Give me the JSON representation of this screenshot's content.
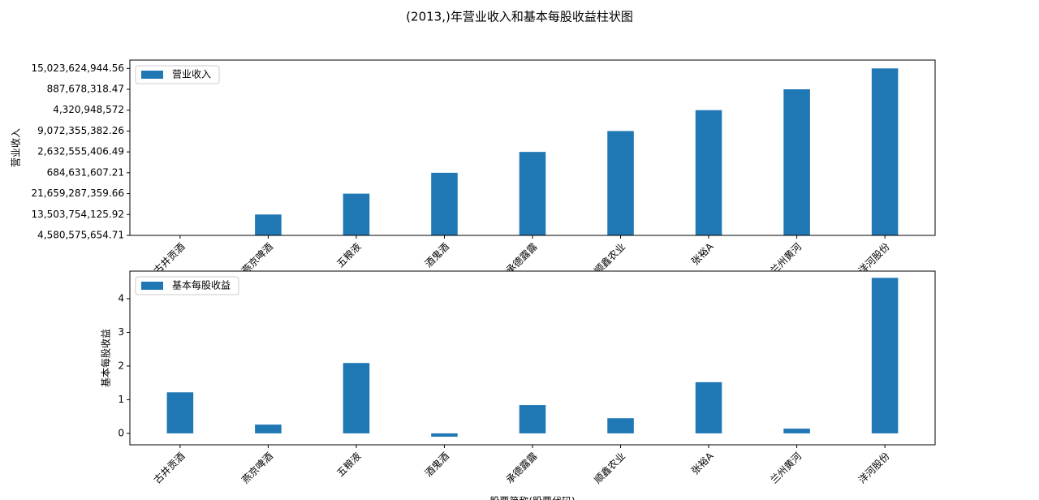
{
  "title": "(2013,)年营业收入和基本每股收益柱状图",
  "chart_data": [
    {
      "type": "bar",
      "categories": [
        "古井贡酒",
        "燕京啤酒",
        "五粮液",
        "酒鬼酒",
        "承德露露",
        "顺鑫农业",
        "张裕A",
        "兰州黄河",
        "洋河股份"
      ],
      "series": [
        {
          "name": "营业收入",
          "color": "#1f77b4",
          "values": [
            0,
            1,
            2,
            3,
            4,
            5,
            6,
            7,
            8
          ]
        }
      ],
      "ylabel": "营业收入",
      "ylim": [
        0,
        8.4
      ],
      "yticks": [
        {
          "value": 0,
          "label": "4,580,575,654.71"
        },
        {
          "value": 1,
          "label": "13,503,754,125.92"
        },
        {
          "value": 2,
          "label": "21,659,287,359.66"
        },
        {
          "value": 3,
          "label": "684,631,607.21"
        },
        {
          "value": 4,
          "label": "2,632,555,406.49"
        },
        {
          "value": 5,
          "label": "9,072,355,382.26"
        },
        {
          "value": 6,
          "label": "4,320,948,572"
        },
        {
          "value": 7,
          "label": "887,678,318.47"
        },
        {
          "value": 8,
          "label": "15,023,624,944.56"
        }
      ],
      "legend": "upper left"
    },
    {
      "type": "bar",
      "categories": [
        "古井贡酒",
        "燕京啤酒",
        "五粮液",
        "酒鬼酒",
        "承德露露",
        "顺鑫农业",
        "张裕A",
        "兰州黄河",
        "洋河股份"
      ],
      "series": [
        {
          "name": "基本每股收益",
          "color": "#1f77b4",
          "values": [
            1.22,
            0.26,
            2.09,
            -0.1,
            0.84,
            0.45,
            1.52,
            0.14,
            4.62
          ]
        }
      ],
      "ylabel": "基本每股收益",
      "xlabel": "股票简称(股票代码)",
      "ylim": [
        -0.34,
        4.82
      ],
      "yticks": [
        0,
        1,
        2,
        3,
        4
      ],
      "legend": "upper left"
    }
  ]
}
